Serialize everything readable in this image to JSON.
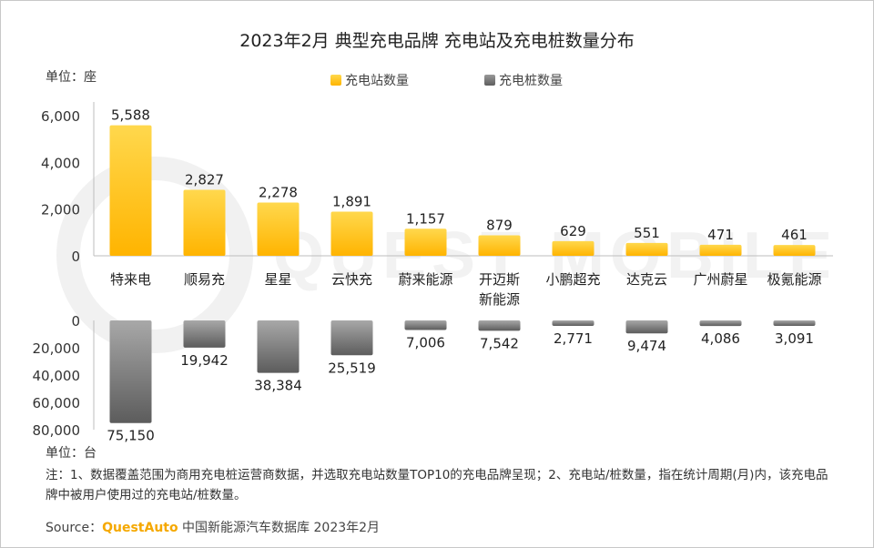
{
  "title": "2023年2月 典型充电品牌 充电站及充电桩数量分布",
  "top_unit": "单位：座",
  "bottom_unit": "单位：台",
  "note": "注：1、数据覆盖范围为商用充电桩运营商数据，并选取充电站数量TOP10的充电品牌呈现；2、充电站/桩数量，指在统计周期(月)内，该充电品牌中被用户使用过的充电站/桩数量。",
  "source": {
    "prefix": "Source：",
    "brand": "QuestAuto",
    "text": " 中国新能源汽车数据库 2023年2月"
  },
  "watermark": "QUEST MOBILE",
  "colors": {
    "station": "#ffc000",
    "pile": "#808080"
  },
  "chart_data": {
    "type": "bar",
    "categories": [
      "特来电",
      "顺易充",
      "星星",
      "云快充",
      "蔚来能源",
      "开迈斯\n新能源",
      "小鹏超充",
      "达克云",
      "广州蔚星",
      "极氪能源"
    ],
    "series": [
      {
        "name": "充电站数量",
        "values": [
          5588,
          2827,
          2278,
          1891,
          1157,
          879,
          629,
          551,
          471,
          461
        ],
        "labels": [
          "5,588",
          "2,827",
          "2,278",
          "1,891",
          "1,157",
          "879",
          "629",
          "551",
          "471",
          "461"
        ]
      },
      {
        "name": "充电桩数量",
        "values": [
          75150,
          19942,
          38384,
          25519,
          7006,
          7542,
          2771,
          9474,
          4086,
          3091
        ],
        "labels": [
          "75,150",
          "19,942",
          "38,384",
          "25,519",
          "7,006",
          "7,542",
          "2,771",
          "9,474",
          "4,086",
          "3,091"
        ]
      }
    ],
    "top_axis": {
      "ylim": [
        0,
        6000
      ],
      "ticks": [
        "6,000",
        "4,000",
        "2,000",
        "0"
      ],
      "tick_values": [
        6000,
        4000,
        2000,
        0
      ]
    },
    "bottom_axis": {
      "ylim": [
        0,
        80000
      ],
      "ticks": [
        "0",
        "20,000",
        "40,000",
        "60,000",
        "80,000"
      ],
      "tick_values": [
        0,
        20000,
        40000,
        60000,
        80000
      ],
      "inverted": true
    },
    "legend_position": "top"
  }
}
